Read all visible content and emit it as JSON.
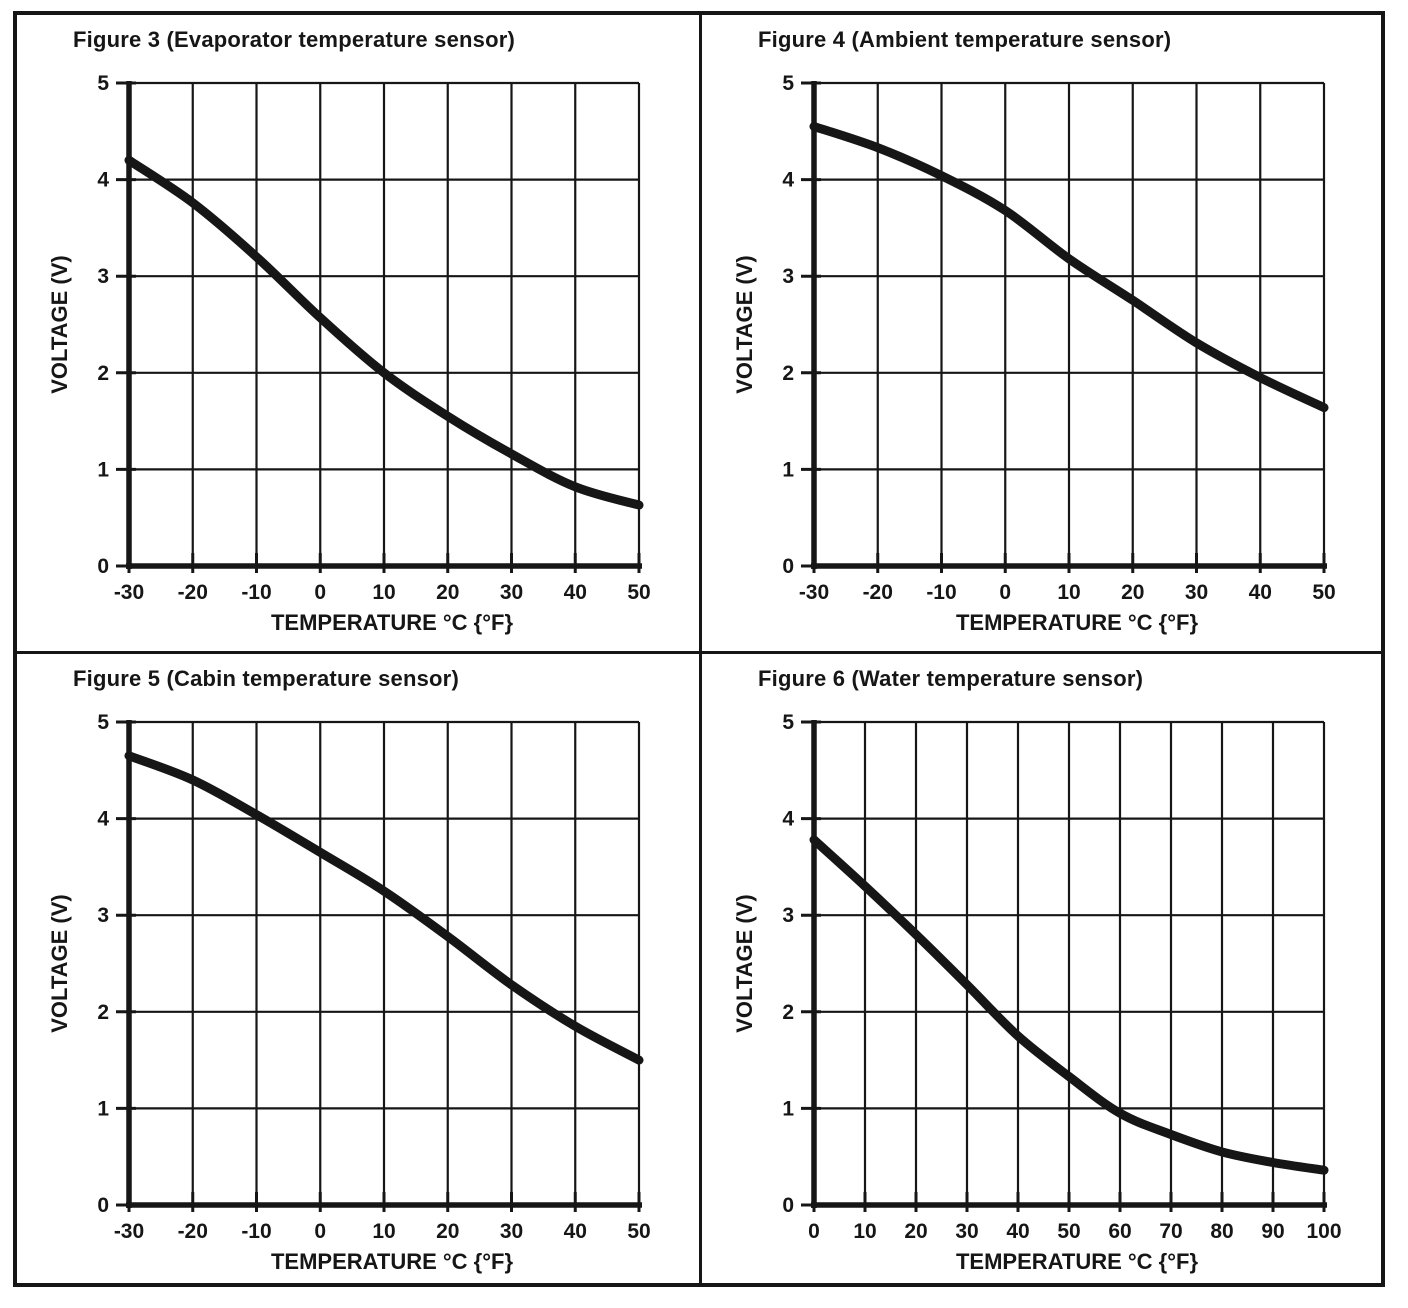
{
  "page": {
    "background": "#ffffff",
    "ink_color": "#161616",
    "description": "Scanned service-manual page with four temperature sensor characteristic charts"
  },
  "chart_data": [
    {
      "type": "line",
      "title": "Figure 3 (Evaporator temperature sensor)",
      "xlabel": "TEMPERATURE  °C {°F}",
      "ylabel": "VOLTAGE (V)",
      "xlim": [
        -30,
        50
      ],
      "ylim": [
        0,
        5
      ],
      "xticks": [
        -30,
        -20,
        -10,
        0,
        10,
        20,
        30,
        40,
        50
      ],
      "yticks": [
        0,
        1,
        2,
        3,
        4,
        5
      ],
      "grid": true,
      "legend": null,
      "x": [
        -30,
        -20,
        -10,
        0,
        10,
        20,
        30,
        40,
        50
      ],
      "y": [
        4.2,
        3.76,
        3.2,
        2.57,
        2.0,
        1.55,
        1.16,
        0.82,
        0.63
      ]
    },
    {
      "type": "line",
      "title": "Figure 4 (Ambient temperature sensor)",
      "xlabel": "TEMPERATURE  °C {°F}",
      "ylabel": "VOLTAGE (V)",
      "xlim": [
        -30,
        50
      ],
      "ylim": [
        0,
        5
      ],
      "xticks": [
        -30,
        -20,
        -10,
        0,
        10,
        20,
        30,
        40,
        50
      ],
      "yticks": [
        0,
        1,
        2,
        3,
        4,
        5
      ],
      "grid": true,
      "legend": null,
      "x": [
        -30,
        -20,
        -10,
        0,
        10,
        20,
        30,
        40,
        50
      ],
      "y": [
        4.55,
        4.33,
        4.04,
        3.68,
        3.18,
        2.75,
        2.31,
        1.95,
        1.64
      ]
    },
    {
      "type": "line",
      "title": "Figure 5 (Cabin temperature sensor)",
      "xlabel": "TEMPERATURE  °C {°F}",
      "ylabel": "VOLTAGE (V)",
      "xlim": [
        -30,
        50
      ],
      "ylim": [
        0,
        5
      ],
      "xticks": [
        -30,
        -20,
        -10,
        0,
        10,
        20,
        30,
        40,
        50
      ],
      "yticks": [
        0,
        1,
        2,
        3,
        4,
        5
      ],
      "grid": true,
      "legend": null,
      "x": [
        -30,
        -20,
        -10,
        0,
        10,
        20,
        30,
        40,
        50
      ],
      "y": [
        4.65,
        4.4,
        4.04,
        3.65,
        3.25,
        2.78,
        2.28,
        1.85,
        1.5
      ]
    },
    {
      "type": "line",
      "title": "Figure 6 (Water temperature sensor)",
      "xlabel": "TEMPERATURE  °C {°F}",
      "ylabel": "VOLTAGE (V)",
      "xlim": [
        0,
        100
      ],
      "ylim": [
        0,
        5
      ],
      "xticks": [
        0,
        10,
        20,
        30,
        40,
        50,
        60,
        70,
        80,
        90,
        100
      ],
      "yticks": [
        0,
        1,
        2,
        3,
        4,
        5
      ],
      "grid": true,
      "legend": null,
      "x": [
        0,
        10,
        20,
        30,
        40,
        50,
        60,
        70,
        80,
        90,
        100
      ],
      "y": [
        3.78,
        3.3,
        2.8,
        2.28,
        1.75,
        1.33,
        0.95,
        0.73,
        0.55,
        0.44,
        0.36
      ]
    }
  ]
}
